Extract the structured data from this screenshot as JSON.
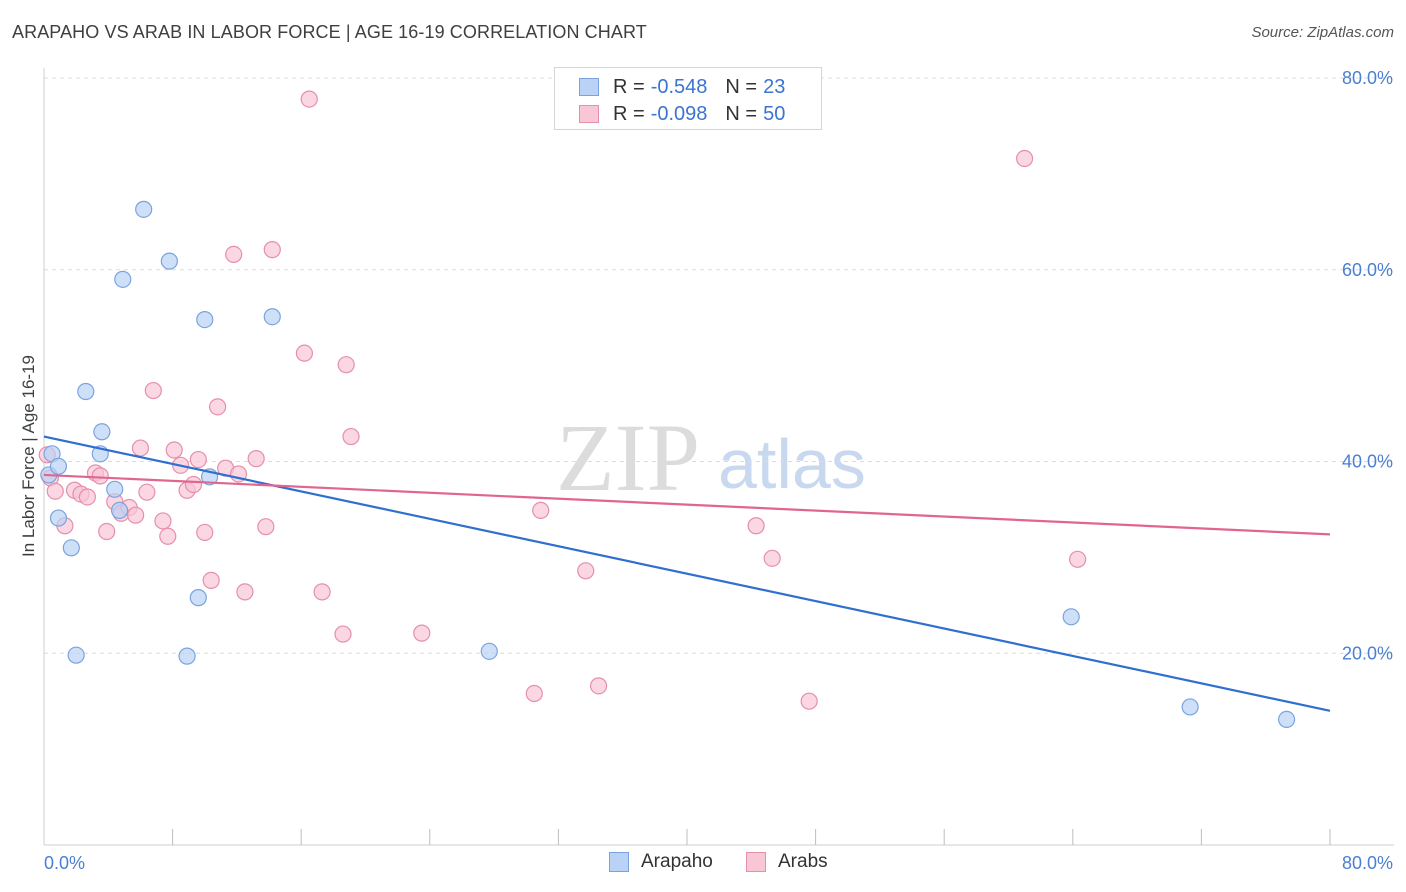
{
  "title": "ARAPAHO VS ARAB IN LABOR FORCE | AGE 16-19 CORRELATION CHART",
  "source": "Source: ZipAtlas.com",
  "watermark": {
    "zip": "ZIP",
    "atlas": "atlas"
  },
  "legend": {
    "rows": [
      {
        "r_label": "R =",
        "r_value": "-0.548",
        "n_label": "N =",
        "n_value": "23"
      },
      {
        "r_label": "R =",
        "r_value": "-0.098",
        "n_label": "N =",
        "n_value": "50"
      }
    ]
  },
  "bottom_legend": [
    "Arapaho",
    "Arabs"
  ],
  "colors": {
    "arapaho_fill": "#b9d2f5",
    "arapaho_stroke": "#7aa3df",
    "arapaho_line": "#2f6fcf",
    "arabs_fill": "#f8c6d5",
    "arabs_stroke": "#e68fab",
    "arabs_line": "#e0668f",
    "grid": "#dcdcdc",
    "axis_label": "#4a7fd4"
  },
  "chart_data": {
    "type": "scatter",
    "title": "ARAPAHO VS ARAB IN LABOR FORCE | AGE 16-19 CORRELATION CHART",
    "xlabel": "",
    "ylabel": "In Labor Force | Age 16-19",
    "xlim": [
      0,
      80
    ],
    "ylim": [
      0,
      80
    ],
    "x_tick_labels": [
      "0.0%",
      "80.0%"
    ],
    "y_ticks": [
      20,
      40,
      60,
      80
    ],
    "y_tick_labels": [
      "20.0%",
      "40.0%",
      "60.0%",
      "80.0%"
    ],
    "series": [
      {
        "name": "Arapaho",
        "points": [
          [
            0.3,
            38.6
          ],
          [
            0.5,
            40.8
          ],
          [
            0.9,
            39.5
          ],
          [
            0.9,
            34.1
          ],
          [
            1.7,
            31.0
          ],
          [
            2.0,
            19.8
          ],
          [
            2.6,
            47.3
          ],
          [
            3.5,
            40.8
          ],
          [
            3.6,
            43.1
          ],
          [
            4.4,
            37.1
          ],
          [
            4.7,
            34.9
          ],
          [
            4.9,
            59.0
          ],
          [
            6.2,
            66.3
          ],
          [
            7.8,
            60.9
          ],
          [
            8.9,
            19.7
          ],
          [
            9.6,
            25.8
          ],
          [
            10.0,
            54.8
          ],
          [
            10.3,
            38.4
          ],
          [
            14.2,
            55.1
          ],
          [
            27.7,
            20.2
          ],
          [
            63.9,
            23.8
          ],
          [
            71.3,
            14.4
          ],
          [
            77.3,
            13.1
          ]
        ],
        "trend": {
          "x": [
            0,
            80
          ],
          "y": [
            42.6,
            14.0
          ]
        }
      },
      {
        "name": "Arabs",
        "points": [
          [
            0.2,
            40.7
          ],
          [
            0.4,
            38.3
          ],
          [
            0.7,
            36.9
          ],
          [
            1.3,
            33.3
          ],
          [
            1.9,
            37.0
          ],
          [
            2.3,
            36.6
          ],
          [
            2.7,
            36.3
          ],
          [
            3.2,
            38.8
          ],
          [
            3.5,
            38.5
          ],
          [
            3.9,
            32.7
          ],
          [
            4.4,
            35.8
          ],
          [
            4.8,
            34.6
          ],
          [
            5.3,
            35.2
          ],
          [
            5.7,
            34.4
          ],
          [
            6.0,
            41.4
          ],
          [
            6.4,
            36.8
          ],
          [
            6.8,
            47.4
          ],
          [
            7.4,
            33.8
          ],
          [
            7.7,
            32.2
          ],
          [
            8.1,
            41.2
          ],
          [
            8.5,
            39.6
          ],
          [
            8.9,
            37.0
          ],
          [
            9.3,
            37.6
          ],
          [
            9.6,
            40.2
          ],
          [
            10.0,
            32.6
          ],
          [
            10.4,
            27.6
          ],
          [
            10.8,
            45.7
          ],
          [
            11.3,
            39.3
          ],
          [
            11.8,
            61.6
          ],
          [
            12.1,
            38.7
          ],
          [
            12.5,
            26.4
          ],
          [
            13.2,
            40.3
          ],
          [
            13.8,
            33.2
          ],
          [
            14.2,
            62.1
          ],
          [
            16.2,
            51.3
          ],
          [
            16.5,
            77.8
          ],
          [
            17.3,
            26.4
          ],
          [
            18.6,
            22.0
          ],
          [
            18.8,
            50.1
          ],
          [
            19.1,
            42.6
          ],
          [
            23.5,
            22.1
          ],
          [
            30.5,
            15.8
          ],
          [
            30.9,
            34.9
          ],
          [
            33.7,
            28.6
          ],
          [
            34.5,
            16.6
          ],
          [
            44.3,
            33.3
          ],
          [
            45.3,
            29.9
          ],
          [
            47.6,
            15.0
          ],
          [
            61.0,
            71.6
          ],
          [
            64.3,
            29.8
          ]
        ],
        "trend": {
          "x": [
            0,
            80
          ],
          "y": [
            38.6,
            32.4
          ]
        }
      }
    ]
  }
}
